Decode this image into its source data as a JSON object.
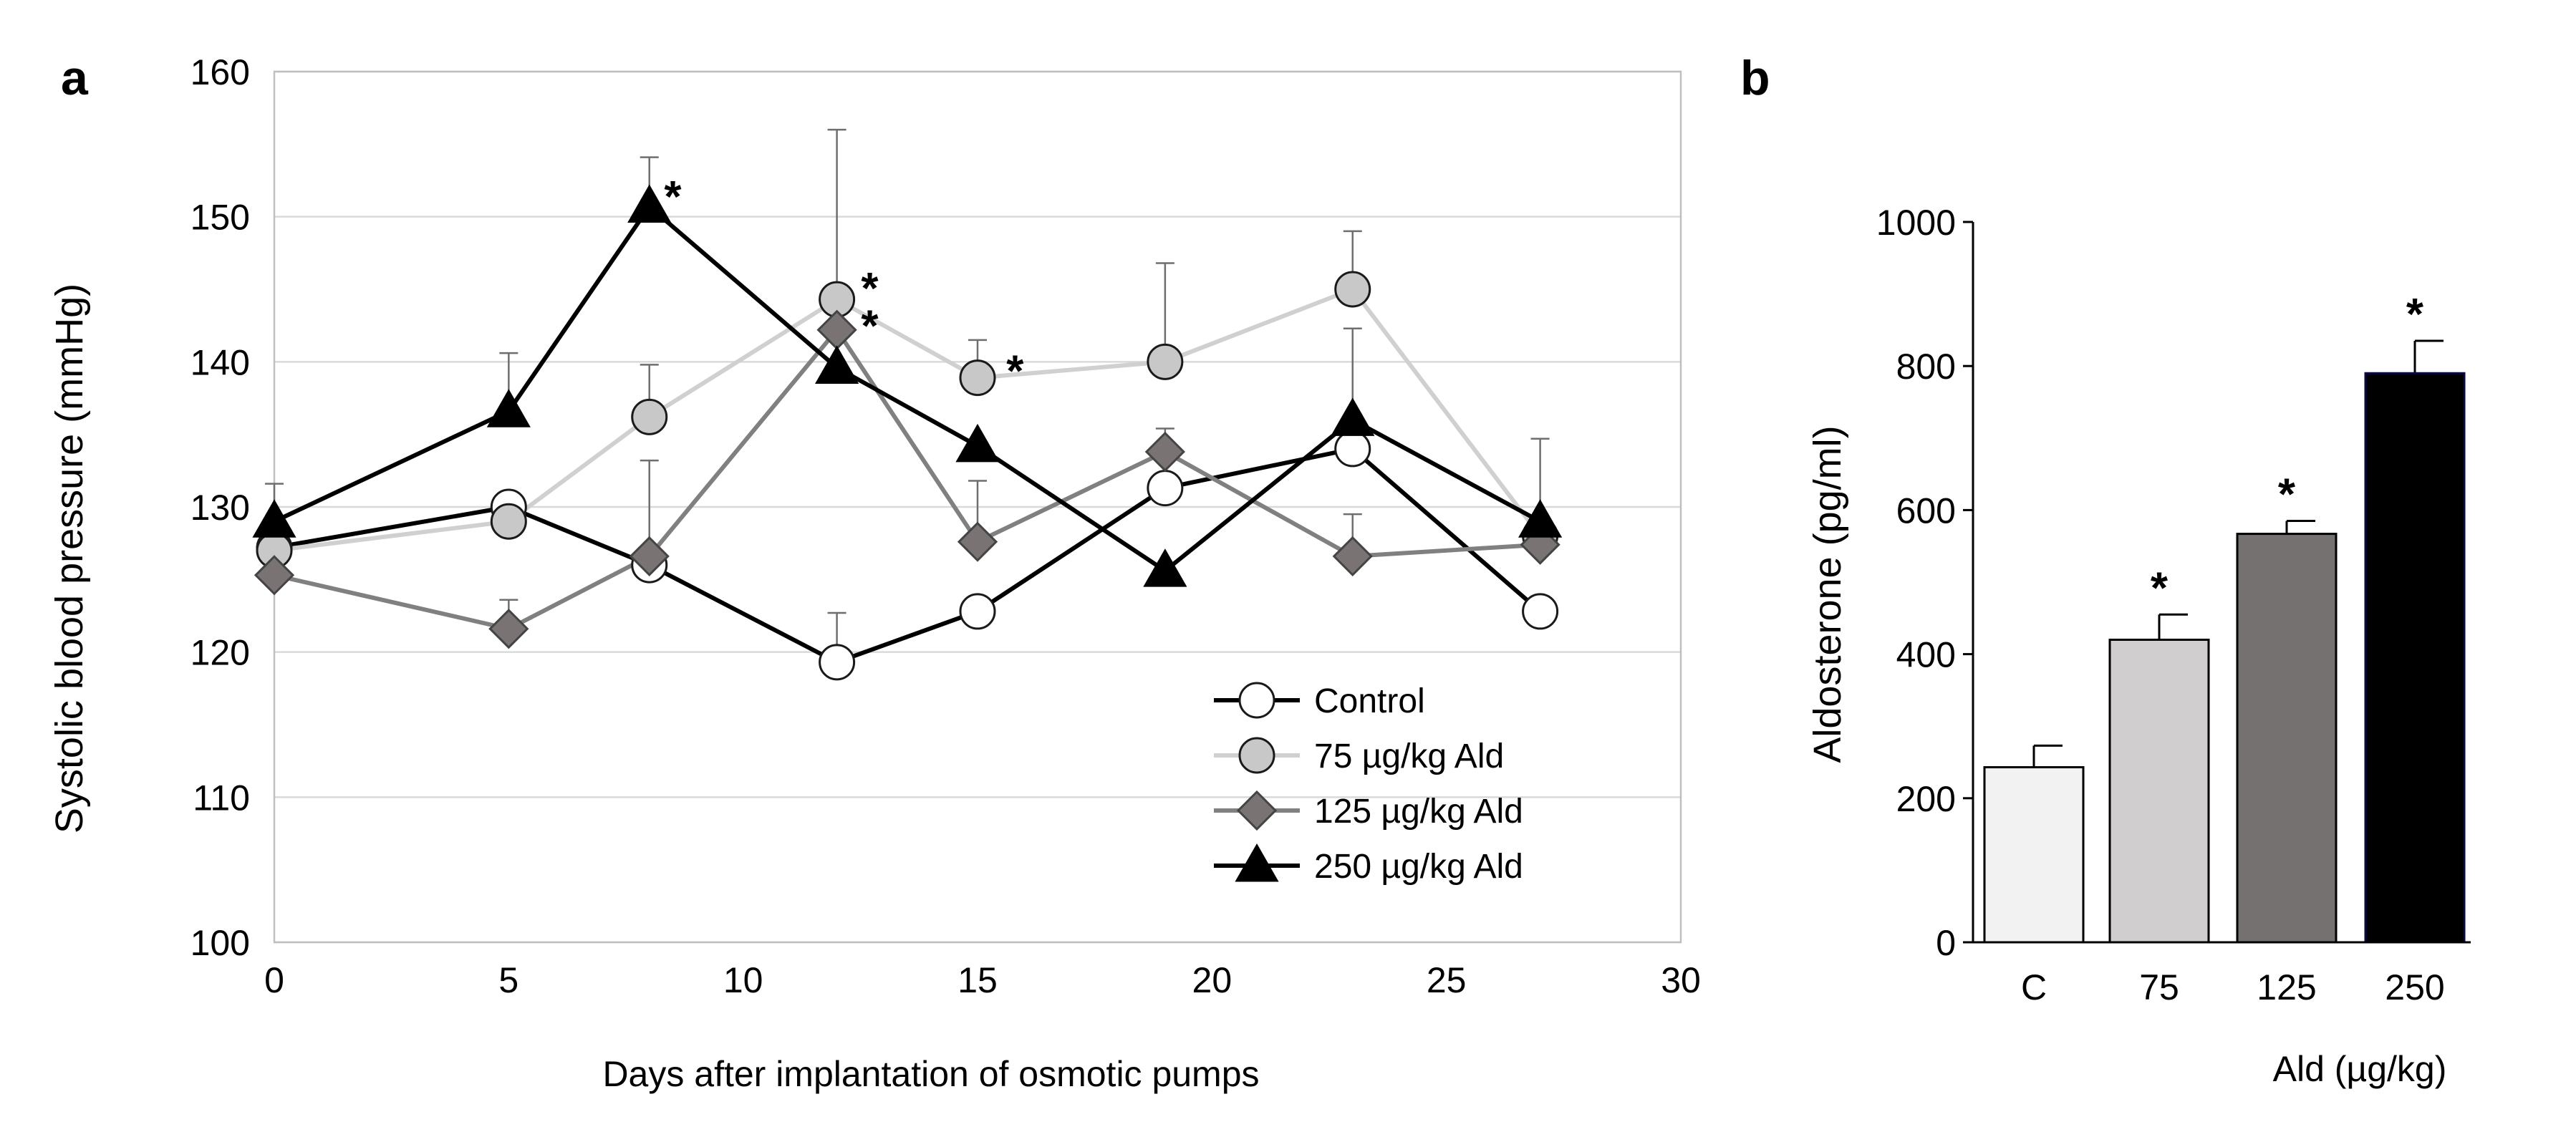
{
  "chart_data": [
    {
      "panel": "a",
      "type": "line",
      "xlabel": "Days after implantation of osmotic pumps",
      "ylabel": "Systolic blood pressure (mmHg)",
      "xlim": [
        0,
        30
      ],
      "ylim": [
        100,
        160
      ],
      "xticks": [
        "0",
        "5",
        "10",
        "15",
        "20",
        "25",
        "30"
      ],
      "yticks": [
        "100",
        "110",
        "120",
        "130",
        "140",
        "150",
        "160"
      ],
      "grid": "horizontal",
      "legend_position": "bottom-right",
      "series": [
        {
          "name": "Control",
          "marker": "circle",
          "line_color": "#000000",
          "fill_color": "#ffffff",
          "x": [
            0,
            5,
            8,
            12,
            15,
            19,
            23,
            27
          ],
          "y": [
            127.2,
            130.0,
            126.0,
            119.3,
            122.8,
            131.3,
            134.0,
            122.8
          ],
          "err": [
            0,
            0,
            0,
            3.4,
            0,
            0,
            0,
            0
          ]
        },
        {
          "name": "75 µg/kg Ald",
          "marker": "circle",
          "line_color": "#d0d0d0",
          "fill_color": "#c8c8c8",
          "x": [
            0,
            5,
            8,
            12,
            15,
            19,
            23,
            27
          ],
          "y": [
            127.0,
            129.0,
            136.2,
            144.3,
            138.9,
            140.0,
            145.0,
            128.0
          ],
          "err": [
            0,
            0,
            3.6,
            11.7,
            2.6,
            6.8,
            4.0,
            0
          ]
        },
        {
          "name": "125 µg/kg Ald",
          "marker": "diamond",
          "line_color": "#808080",
          "fill_color": "#7a7373",
          "x": [
            0,
            5,
            8,
            12,
            15,
            19,
            23,
            27
          ],
          "y": [
            125.3,
            121.6,
            126.6,
            142.2,
            127.6,
            133.8,
            126.6,
            127.4
          ],
          "err": [
            0,
            2.0,
            6.6,
            0,
            4.2,
            1.6,
            2.9,
            0
          ]
        },
        {
          "name": "250 µg/kg Ald",
          "marker": "triangle",
          "line_color": "#000000",
          "fill_color": "#000000",
          "x": [
            0,
            5,
            8,
            12,
            15,
            19,
            23,
            27
          ],
          "y": [
            129.0,
            136.6,
            150.7,
            139.6,
            134.2,
            125.6,
            136.0,
            129.0
          ],
          "err": [
            2.6,
            4.0,
            3.4,
            0,
            0,
            0,
            6.3,
            5.7
          ]
        }
      ],
      "annotations": [
        {
          "text": "*",
          "x": 8.5,
          "y": 151.9
        },
        {
          "text": "*",
          "x": 12.7,
          "y": 145.6
        },
        {
          "text": "*",
          "x": 12.7,
          "y": 143.0
        },
        {
          "text": "*",
          "x": 15.8,
          "y": 139.9
        }
      ]
    },
    {
      "panel": "b",
      "type": "bar",
      "categories": [
        "C",
        "75",
        "125",
        "250"
      ],
      "values": [
        243,
        420,
        567,
        790
      ],
      "errors": [
        30,
        35,
        18,
        45
      ],
      "colors": [
        "#f2f2f2",
        "#d0cece",
        "#767171",
        "#000000"
      ],
      "significance": [
        "",
        "*",
        "*",
        "*"
      ],
      "xlabel": "Ald (µg/kg)",
      "ylabel": "Aldosterone (pg/ml)",
      "ylim": [
        0,
        1000
      ],
      "yticks": [
        "0",
        "200",
        "400",
        "600",
        "800",
        "1000"
      ],
      "grid": "none"
    }
  ]
}
